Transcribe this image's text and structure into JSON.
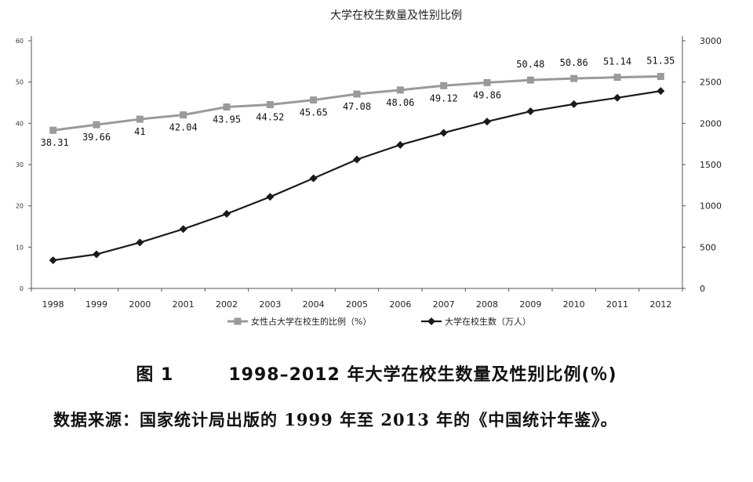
{
  "chart_data": {
    "type": "line",
    "title": "大学在校生数量及性别比例",
    "categories": [
      "1998",
      "1999",
      "2000",
      "2001",
      "2002",
      "2003",
      "2004",
      "2005",
      "2006",
      "2007",
      "2008",
      "2009",
      "2010",
      "2011",
      "2012"
    ],
    "series": [
      {
        "name": "女性占大学在校生的比例（%）",
        "axis": "left",
        "color": "#9a9a9a",
        "marker": "square",
        "values": [
          38.31,
          39.66,
          41,
          42.04,
          43.95,
          44.52,
          45.65,
          47.08,
          48.06,
          49.12,
          49.86,
          50.48,
          50.86,
          51.14,
          51.35
        ],
        "data_labels": [
          "38.31",
          "39.66",
          "41",
          "42.04",
          "43.95",
          "44.52",
          "45.65",
          "47.08",
          "48.06",
          "49.12",
          "49.86",
          "50.48",
          "50.86",
          "51.14",
          "51.35"
        ]
      },
      {
        "name": "大学在校生数（万人）",
        "axis": "right",
        "color": "#1a1a1a",
        "marker": "diamond",
        "values": [
          341,
          413,
          556,
          719,
          903,
          1109,
          1334,
          1562,
          1739,
          1885,
          2021,
          2145,
          2232,
          2309,
          2391
        ]
      }
    ],
    "y_left": {
      "ylim": [
        0,
        60
      ],
      "ticks": [
        "0",
        "10",
        "20",
        "30",
        "40",
        "50",
        "60"
      ]
    },
    "y_right": {
      "ylim": [
        0,
        3000
      ],
      "ticks": [
        "0",
        "500",
        "1000",
        "1500",
        "2000",
        "2500",
        "3000"
      ]
    },
    "grid": false,
    "legend_position": "bottom"
  },
  "caption": {
    "figure_number": "图 1",
    "text": "1998–2012 年大学在校生数量及性别比例(％)"
  },
  "source_note": "数据来源：国家统计局出版的 1999 年至 2013 年的《中国统计年鉴》。"
}
